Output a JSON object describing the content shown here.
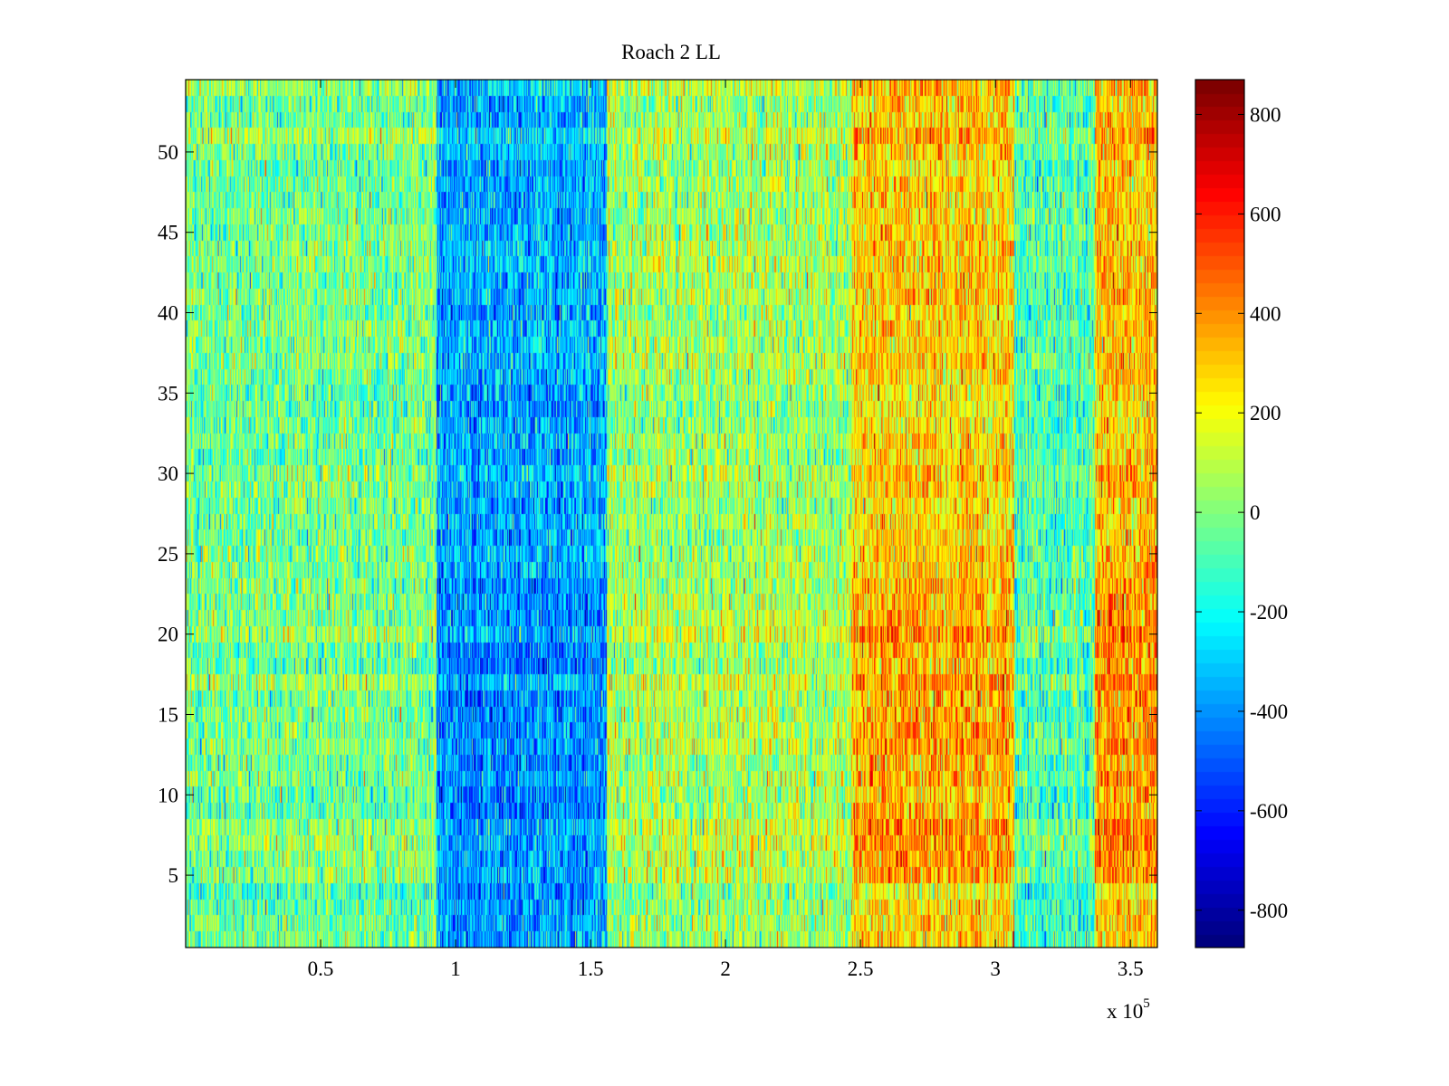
{
  "chart_data": {
    "type": "heatmap",
    "title": "Roach 2 LL",
    "xlabel": "",
    "ylabel": "",
    "x_exponent_label": "x 10",
    "x_exponent": "5",
    "xlim": [
      0,
      360000
    ],
    "ylim": [
      0.5,
      54.5
    ],
    "rows": 54,
    "x_ticks": [
      50000,
      100000,
      150000,
      200000,
      250000,
      300000,
      350000
    ],
    "x_tick_labels": [
      "0.5",
      "1",
      "1.5",
      "2",
      "2.5",
      "3",
      "3.5"
    ],
    "y_ticks": [
      5,
      10,
      15,
      20,
      25,
      30,
      35,
      40,
      45,
      50
    ],
    "y_tick_labels": [
      "5",
      "10",
      "15",
      "20",
      "25",
      "30",
      "35",
      "40",
      "45",
      "50"
    ],
    "colormap": "jet",
    "clim": [
      -875,
      870
    ],
    "colorbar_ticks": [
      800,
      600,
      400,
      200,
      0,
      -200,
      -400,
      -600,
      -800
    ],
    "colorbar_tick_labels": [
      "800",
      "600",
      "400",
      "200",
      "0",
      "-200",
      "-400",
      "-600",
      "-800"
    ],
    "column_band_means": [
      {
        "x_start": 0,
        "x_end": 93000,
        "mean": -40
      },
      {
        "x_start": 93000,
        "x_end": 156000,
        "mean": -360
      },
      {
        "x_start": 156000,
        "x_end": 247000,
        "mean": 40
      },
      {
        "x_start": 247000,
        "x_end": 307000,
        "mean": 260
      },
      {
        "x_start": 307000,
        "x_end": 337000,
        "mean": -90
      },
      {
        "x_start": 337000,
        "x_end": 360000,
        "mean": 300
      }
    ],
    "noise_std": 150
  }
}
